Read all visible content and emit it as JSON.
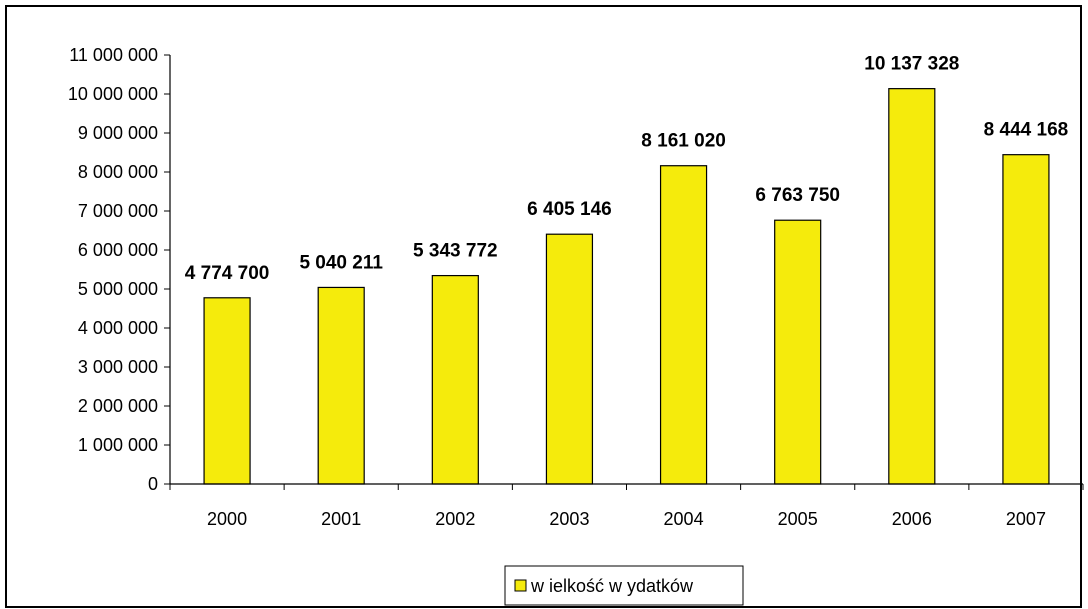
{
  "chart_data": {
    "type": "bar",
    "categories": [
      "2000",
      "2001",
      "2002",
      "2003",
      "2004",
      "2005",
      "2006",
      "2007"
    ],
    "series": [
      {
        "name": "w ielkość w ydatków",
        "values": [
          4774700,
          5040211,
          5343772,
          6405146,
          8161020,
          6763750,
          10137328,
          8444168
        ],
        "data_labels": [
          "4 774 700",
          "5 040 211",
          "5 343 772",
          "6 405 146",
          "8 161 020",
          "6 763 750",
          "10 137 328",
          "8 444 168"
        ],
        "color": "#F5EB0C"
      }
    ],
    "ylim": [
      0,
      11000000
    ],
    "y_ticks": [
      0,
      1000000,
      2000000,
      3000000,
      4000000,
      5000000,
      6000000,
      7000000,
      8000000,
      9000000,
      10000000,
      11000000
    ],
    "y_tick_labels": [
      "0",
      "1 000 000",
      "2 000 000",
      "3 000 000",
      "4 000 000",
      "5 000 000",
      "6 000 000",
      "7 000 000",
      "8 000 000",
      "9 000 000",
      "10 000 000",
      "11 000 000"
    ],
    "grid": false,
    "legend_position": "bottom"
  }
}
